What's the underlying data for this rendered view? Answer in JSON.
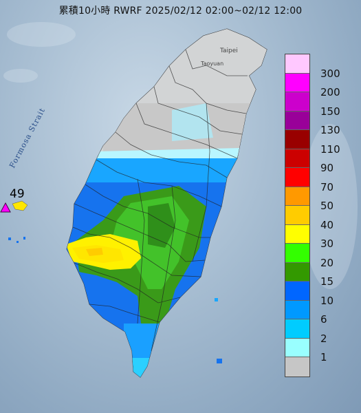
{
  "header": {
    "title": "累積10小時 RWRF 2025/02/12 02:00~02/12 12:00"
  },
  "map_labels": {
    "strait": "Formosa Strait",
    "taipei": "Taipei",
    "taoyuan": "Taoyuan"
  },
  "station_marker": {
    "value": "49"
  },
  "legend": {
    "unit": "",
    "bins": [
      {
        "label": "300",
        "color": "#ffc8ff"
      },
      {
        "label": "200",
        "color": "#ff00ff"
      },
      {
        "label": "150",
        "color": "#cc00cc"
      },
      {
        "label": "130",
        "color": "#990099"
      },
      {
        "label": "110",
        "color": "#990000"
      },
      {
        "label": "90",
        "color": "#cc0000"
      },
      {
        "label": "70",
        "color": "#ff0000"
      },
      {
        "label": "50",
        "color": "#ff9900"
      },
      {
        "label": "40",
        "color": "#ffcc00"
      },
      {
        "label": "30",
        "color": "#ffff00"
      },
      {
        "label": "20",
        "color": "#33ff00"
      },
      {
        "label": "15",
        "color": "#339900"
      },
      {
        "label": "10",
        "color": "#0066ff"
      },
      {
        "label": "6",
        "color": "#0099ff"
      },
      {
        "label": "2",
        "color": "#00ccff"
      },
      {
        "label": "1",
        "color": "#99ffff"
      },
      {
        "label": "",
        "color": "#c6c6c6"
      }
    ]
  }
}
